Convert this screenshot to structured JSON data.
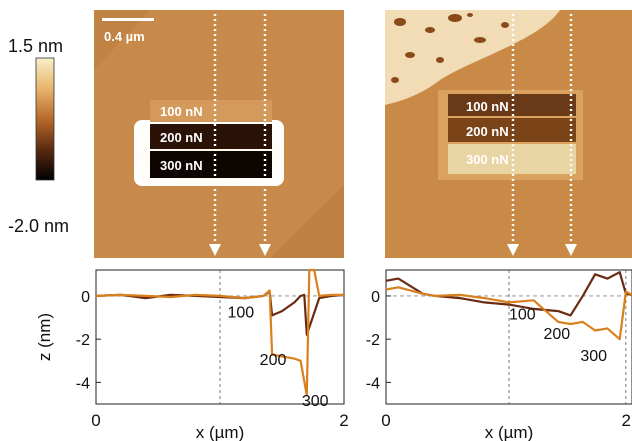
{
  "colorbar": {
    "max_label": "1.5 nm",
    "min_label": "-2.0 nm",
    "colors": [
      "#f8f0c8",
      "#e8b46c",
      "#b86a2a",
      "#5a2a10",
      "#000000"
    ]
  },
  "afm_images": [
    {
      "scale_bar_label": "0.4 µm",
      "box_labels": [
        "100 nN",
        "200 nN",
        "300 nN"
      ],
      "substrate_color": "#c88a4a"
    },
    {
      "box_labels": [
        "100 nN",
        "200 nN",
        "300 nN"
      ],
      "substrate_color": "#c98a48"
    }
  ],
  "chart_data": [
    {
      "type": "line",
      "xlabel": "x (µm)",
      "ylabel": "z (nm)",
      "xlim": [
        0,
        2
      ],
      "ylim": [
        -5,
        1.2
      ],
      "x_ticks": [
        "0",
        "2"
      ],
      "y_ticks": [
        "0",
        "-2",
        "-4"
      ],
      "x_tick_values": [
        0,
        2
      ],
      "y_tick_values": [
        0,
        -2,
        -4
      ],
      "dashed_x": [
        1.0
      ],
      "annotations": [
        {
          "text": "100",
          "x": 1.06,
          "y": -1.0
        },
        {
          "text": "200",
          "x": 1.32,
          "y": -3.2
        },
        {
          "text": "300",
          "x": 1.66,
          "y": -5.1
        }
      ],
      "series": [
        {
          "color": "#6b2a12",
          "x": [
            0,
            0.2,
            0.4,
            0.6,
            0.8,
            1.0,
            1.2,
            1.35,
            1.4,
            1.42,
            1.5,
            1.6,
            1.65,
            1.68,
            1.7,
            1.8,
            1.9,
            2.0
          ],
          "y": [
            0.0,
            0.05,
            -0.1,
            0.05,
            0.0,
            -0.05,
            -0.1,
            0.0,
            0.2,
            -0.9,
            -0.7,
            -0.3,
            0.0,
            0.05,
            -1.8,
            -0.1,
            0.0,
            0.05
          ]
        },
        {
          "color": "#d9801e",
          "x": [
            0,
            0.2,
            0.4,
            0.6,
            0.8,
            1.0,
            1.2,
            1.35,
            1.4,
            1.42,
            1.5,
            1.6,
            1.65,
            1.7,
            1.72,
            1.76,
            1.8,
            1.9,
            2.0
          ],
          "y": [
            0.0,
            0.05,
            0.0,
            -0.05,
            0.05,
            0.0,
            -0.1,
            0.0,
            0.25,
            -2.7,
            -2.8,
            -2.9,
            -3.0,
            -4.6,
            1.2,
            1.2,
            0.0,
            0.05,
            0.05
          ]
        }
      ]
    },
    {
      "type": "line",
      "xlabel": "x (µm)",
      "ylabel": "",
      "xlim": [
        0,
        2
      ],
      "ylim": [
        -5,
        1.2
      ],
      "x_ticks": [
        "0",
        "2"
      ],
      "y_ticks": [
        "0",
        "-2",
        "-4"
      ],
      "x_tick_values": [
        0,
        2
      ],
      "y_tick_values": [
        0,
        -2,
        -4
      ],
      "dashed_x": [
        1.0,
        1.95
      ],
      "annotations": [
        {
          "text": "100",
          "x": 1.0,
          "y": -1.1
        },
        {
          "text": "200",
          "x": 1.28,
          "y": -2.0
        },
        {
          "text": "300",
          "x": 1.58,
          "y": -3.0
        }
      ],
      "series": [
        {
          "color": "#6b2a12",
          "x": [
            0,
            0.1,
            0.3,
            0.4,
            0.6,
            0.8,
            1.0,
            1.2,
            1.4,
            1.5,
            1.6,
            1.7,
            1.8,
            1.9,
            1.95,
            2.0
          ],
          "y": [
            0.7,
            0.8,
            0.1,
            0.0,
            -0.1,
            -0.3,
            -0.4,
            -0.6,
            -0.7,
            -0.9,
            0.0,
            1.0,
            0.8,
            1.1,
            0.1,
            0.05
          ]
        },
        {
          "color": "#d9801e",
          "x": [
            0,
            0.1,
            0.3,
            0.4,
            0.6,
            0.8,
            1.0,
            1.2,
            1.4,
            1.5,
            1.6,
            1.7,
            1.8,
            1.9,
            1.95,
            2.0
          ],
          "y": [
            0.3,
            0.4,
            0.1,
            0.0,
            0.05,
            -0.1,
            -0.3,
            -0.2,
            -1.2,
            -1.3,
            -1.2,
            -1.6,
            -1.5,
            -2.0,
            0.2,
            0.05
          ]
        }
      ]
    }
  ]
}
